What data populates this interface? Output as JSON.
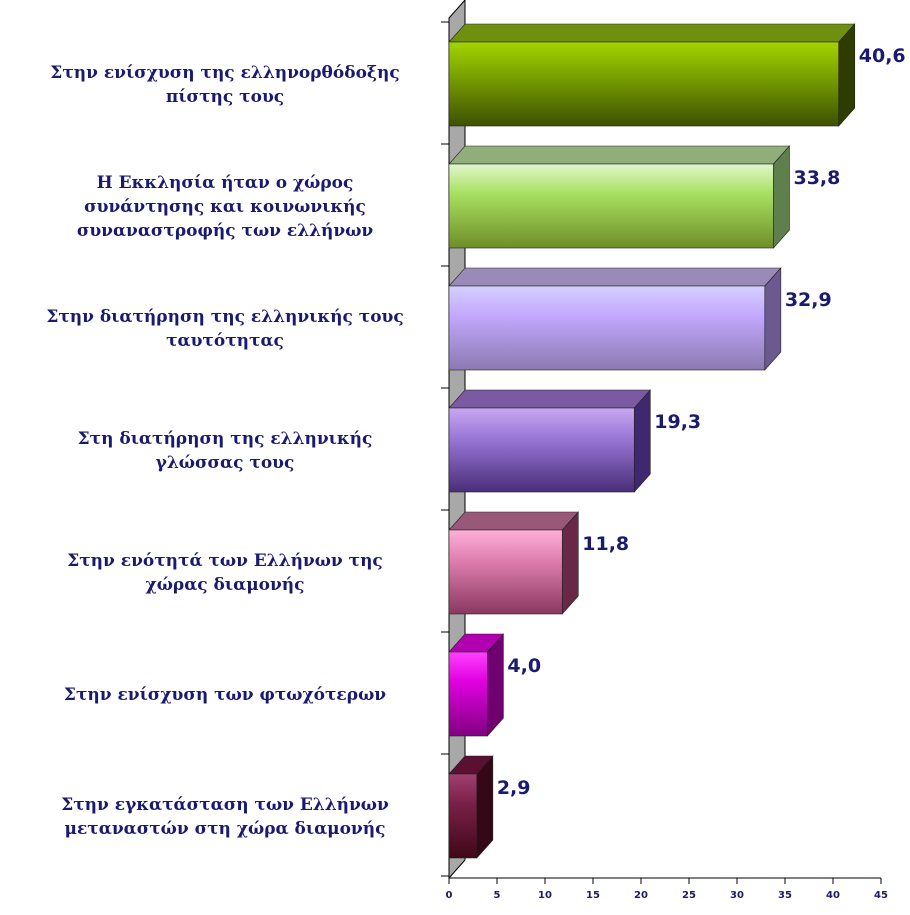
{
  "chart_data": {
    "type": "bar",
    "orientation": "horizontal",
    "categories": [
      [
        "Στην ενίσχυση της ελληνορθόδοξης",
        "πίστης τους"
      ],
      [
        "Η Εκκλησία ήταν ο χώρος",
        "συνάντησης και κοινωνικής",
        "συναναστροφής των ελλήνων"
      ],
      [
        "Στην διατήρηση της ελληνικής τους",
        "ταυτότητας"
      ],
      [
        "Στη διατήρηση της ελληνικής",
        "γλώσσας τους"
      ],
      [
        "Στην ενότητά των Ελλήνων της",
        "χώρας διαμονής"
      ],
      [
        "Στην ενίσχυση των φτωχότερων"
      ],
      [
        "Στην εγκατάσταση των Ελλήνων",
        "μεταναστών στη χώρα διαμονής"
      ]
    ],
    "values": [
      40.6,
      33.8,
      32.9,
      19.3,
      11.8,
      4.0,
      2.9
    ],
    "value_labels": [
      "40,6",
      "33,8",
      "32,9",
      "19,3",
      "11,8",
      "4,0",
      "2,9"
    ],
    "xlim": [
      0,
      45
    ],
    "xticks": [
      0,
      5,
      10,
      15,
      20,
      25,
      30,
      35,
      40,
      45
    ],
    "grid": false,
    "legend": "none",
    "bar_colors": [
      {
        "top": "#6f8f10",
        "light": "#a4d400",
        "mid": "#7fa800",
        "dark": "#3e5000",
        "side": "#2f3c00"
      },
      {
        "top": "#8fae7c",
        "light": "#dff7cc",
        "mid": "#a8e060",
        "dark": "#6e8e28",
        "side": "#5f7f4c"
      },
      {
        "top": "#9a8ab8",
        "light": "#d4d0ff",
        "mid": "#c4a8ff",
        "dark": "#8a7ab0",
        "side": "#6a5a90"
      },
      {
        "top": "#7a5aa0",
        "light": "#c9a8f0",
        "mid": "#9a78d8",
        "dark": "#4a2e78",
        "side": "#3e2870"
      },
      {
        "top": "#9a5878",
        "light": "#ffb0d8",
        "mid": "#e080b0",
        "dark": "#8a3860",
        "side": "#6a2848"
      },
      {
        "top": "#b000b0",
        "light": "#ff40ff",
        "mid": "#e000e0",
        "dark": "#800080",
        "side": "#700070"
      },
      {
        "top": "#5a1030",
        "light": "#a04070",
        "mid": "#7a2048",
        "dark": "#400818",
        "side": "#350818"
      }
    ]
  }
}
